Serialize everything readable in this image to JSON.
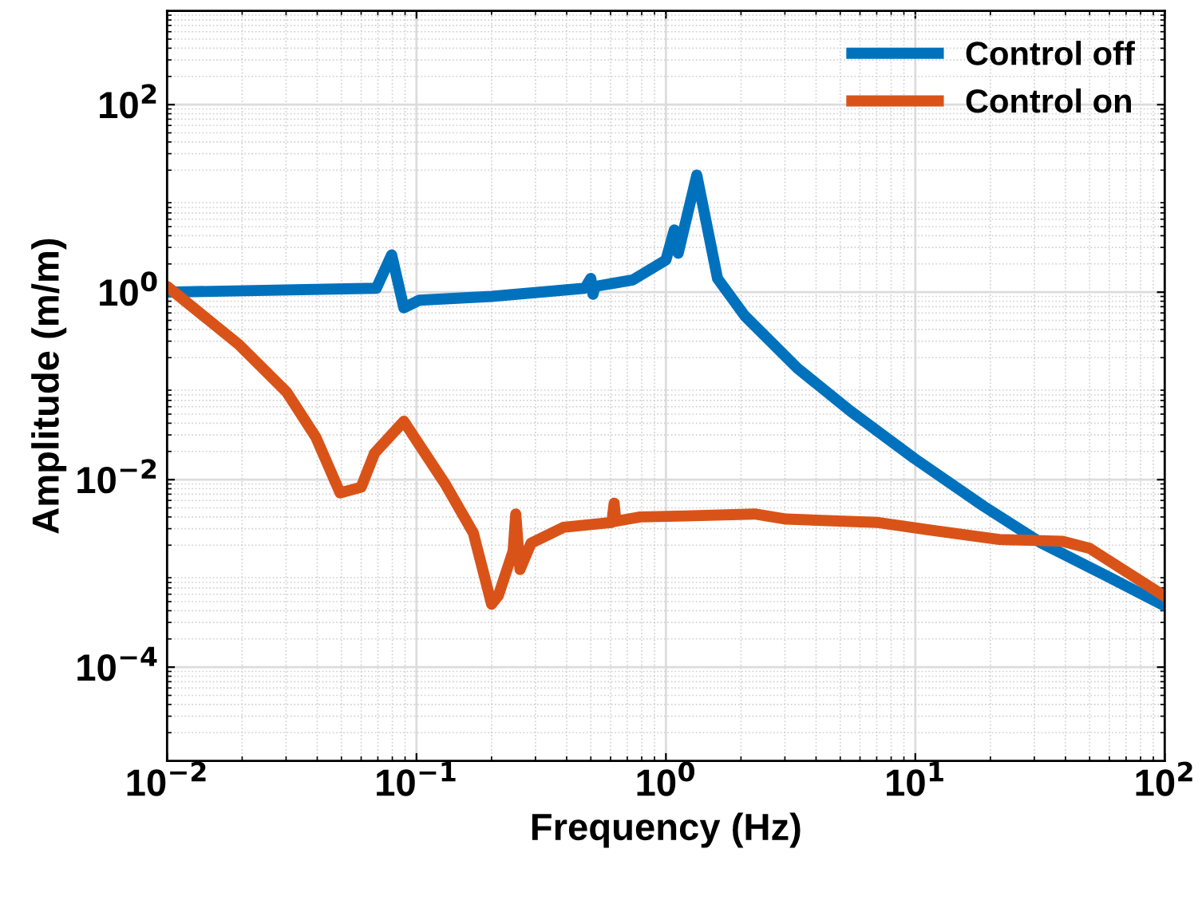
{
  "chart_data": {
    "type": "line",
    "xlabel": "Frequency (Hz)",
    "ylabel": "Amplitude (m/m)",
    "log": "xy",
    "xlim": [
      0.01,
      100
    ],
    "ylim": [
      1e-05,
      1000
    ],
    "xticks": [
      {
        "value": 0.01,
        "label": "10$^{−2}$"
      },
      {
        "value": 0.1,
        "label": "10$^{−1}$"
      },
      {
        "value": 1,
        "label": "10$^{0}$"
      },
      {
        "value": 10,
        "label": "10$^{1}$"
      },
      {
        "value": 100,
        "label": "10$^{2}$"
      }
    ],
    "yticks": [
      {
        "value": 0.0001,
        "label": "10$^{−4}$"
      },
      {
        "value": 0.01,
        "label": "10$^{−2}$"
      },
      {
        "value": 1,
        "label": "10$^{0}$"
      },
      {
        "value": 100,
        "label": "10$^{2}$"
      }
    ],
    "grid": true,
    "legend": "top right",
    "line_style": "solid",
    "marker": "none",
    "series": [
      {
        "name": "Control off",
        "color": "#0072bd",
        "x": [
          0.01,
          0.069,
          0.0795,
          0.089,
          0.1026,
          0.2,
          0.473,
          0.5,
          0.51,
          0.52,
          0.736,
          1.0,
          1.08,
          1.12,
          1.33,
          1.61,
          2.07,
          3.37,
          5.49,
          9.89,
          18.8,
          32.1,
          58,
          100
        ],
        "values": [
          1.0,
          1.1,
          2.5,
          0.68,
          0.82,
          0.9,
          1.1,
          1.4,
          0.95,
          1.15,
          1.35,
          2.2,
          4.6,
          2.6,
          17.7,
          1.4,
          0.56,
          0.154,
          0.054,
          0.0169,
          0.0052,
          0.0021,
          0.00095,
          0.00045
        ]
      },
      {
        "name": "Control on",
        "color": "#d95319",
        "x": [
          0.01,
          0.0194,
          0.0302,
          0.0395,
          0.0494,
          0.06,
          0.0679,
          0.089,
          0.131,
          0.169,
          0.2,
          0.213,
          0.244,
          0.25,
          0.26,
          0.288,
          0.388,
          0.607,
          0.62,
          0.63,
          0.79,
          1.2,
          2.27,
          3.03,
          7.0,
          11.5,
          21.7,
          39,
          50,
          100
        ],
        "values": [
          1.15,
          0.276,
          0.0855,
          0.0283,
          0.00722,
          0.0083,
          0.0192,
          0.0419,
          0.0088,
          0.0027,
          0.00047,
          0.00058,
          0.00173,
          0.0043,
          0.0011,
          0.0021,
          0.0031,
          0.0035,
          0.0056,
          0.0036,
          0.004,
          0.0041,
          0.0043,
          0.0038,
          0.0035,
          0.0029,
          0.0023,
          0.0022,
          0.00185,
          0.00057
        ]
      }
    ]
  }
}
